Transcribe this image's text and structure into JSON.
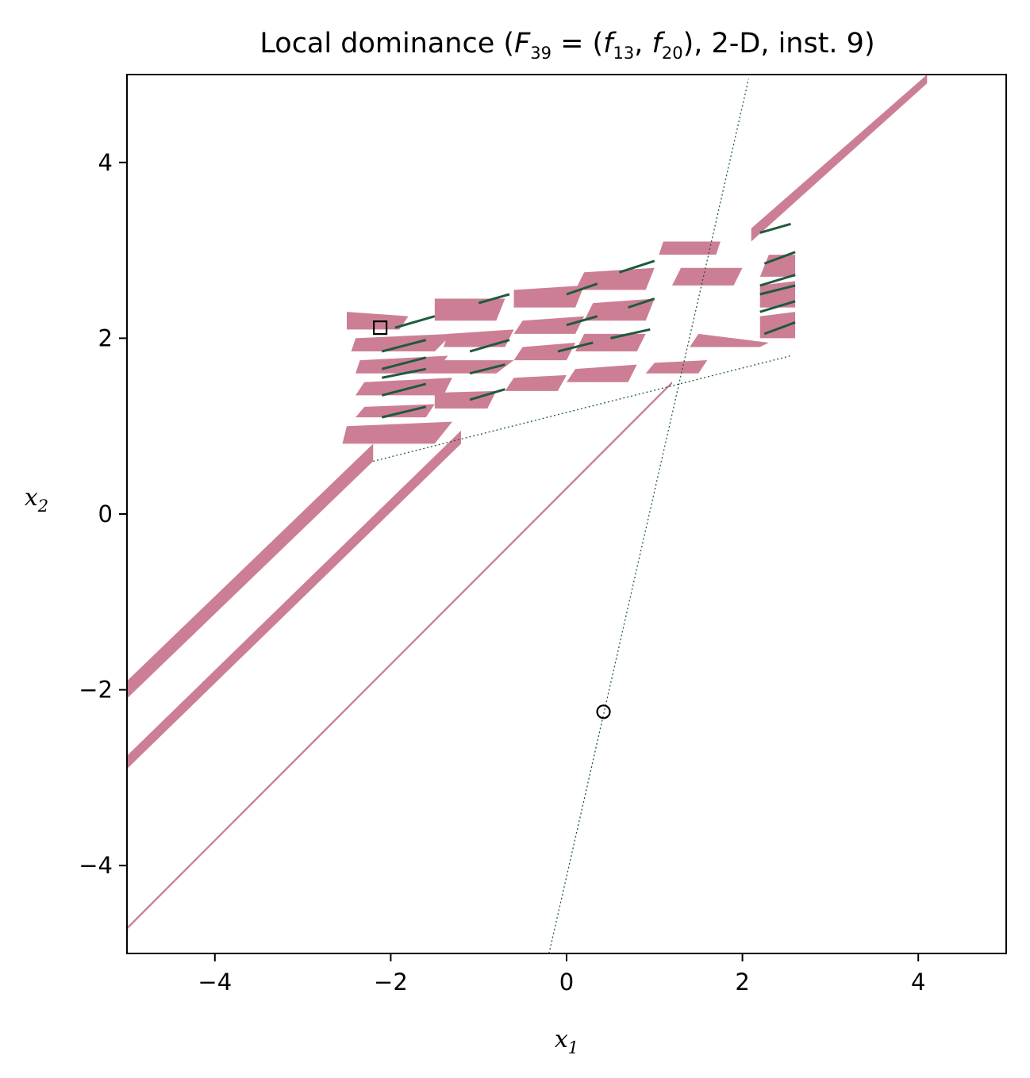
{
  "chart_data": {
    "type": "heatmap",
    "title": "Local dominance (F39 = (f13, f20), 2-D, inst. 9)",
    "title_parts": {
      "prefix": "Local dominance (",
      "F": "F",
      "F_sub": "39",
      "f1": "f",
      "f1_sub": "13",
      "f2": "f",
      "f2_sub": "20",
      "suffix": "), 2-D, inst. 9)"
    },
    "xlabel": "x",
    "xlabel_sub": "1",
    "ylabel": "x",
    "ylabel_sub": "2",
    "xlim": [
      -5,
      5
    ],
    "ylim": [
      -5,
      5
    ],
    "xticks": [
      -4,
      -2,
      0,
      2,
      4
    ],
    "yticks": [
      -4,
      -2,
      0,
      2,
      4
    ],
    "xtick_labels": [
      "−4",
      "−2",
      "0",
      "2",
      "4"
    ],
    "ytick_labels": [
      "−4",
      "−2",
      "0",
      "2",
      "4"
    ],
    "grid": false,
    "colors": {
      "dominated_region": "#cc7f94",
      "efficient_set": "#1f5a3c",
      "background": "#ffffff"
    },
    "diagonal_bands": [
      {
        "x0": -5,
        "y0_low": -2.1,
        "y0_high": -1.9,
        "x1": -2.2,
        "y1_low": 0.6,
        "y1_high": 0.8
      },
      {
        "x0": -5,
        "y0_low": -2.9,
        "y0_high": -2.75,
        "x1": -1.2,
        "y1_low": 0.8,
        "y1_high": 0.95
      },
      {
        "x0": -5,
        "y0_low": -4.73,
        "y0_high": -4.7,
        "x1": 1.2,
        "y1_low": 1.48,
        "y1_high": 1.51
      },
      {
        "x0": 2.1,
        "y0_low": 3.1,
        "y0_high": 3.25,
        "x1": 4.1,
        "y1_low": 4.9,
        "y1_high": 5.0
      }
    ],
    "patches": [
      {
        "x": [
          -2.5,
          -1.9,
          -1.8,
          -2.5
        ],
        "y": [
          2.1,
          2.1,
          2.25,
          2.3
        ]
      },
      {
        "x": [
          -2.45,
          -1.5,
          -1.3,
          -2.4
        ],
        "y": [
          1.85,
          1.85,
          2.05,
          2.0
        ]
      },
      {
        "x": [
          -2.4,
          -1.5,
          -1.35,
          -2.35
        ],
        "y": [
          1.6,
          1.6,
          1.8,
          1.75
        ]
      },
      {
        "x": [
          -2.4,
          -1.4,
          -1.3,
          -2.3
        ],
        "y": [
          1.35,
          1.35,
          1.55,
          1.5
        ]
      },
      {
        "x": [
          -2.4,
          -1.6,
          -1.5,
          -2.3
        ],
        "y": [
          1.1,
          1.1,
          1.25,
          1.22
        ]
      },
      {
        "x": [
          -2.55,
          -1.5,
          -1.3,
          -2.5
        ],
        "y": [
          0.8,
          0.8,
          1.05,
          1.0
        ]
      },
      {
        "x": [
          -1.5,
          -0.8,
          -0.7,
          -1.5
        ],
        "y": [
          2.2,
          2.2,
          2.45,
          2.45
        ]
      },
      {
        "x": [
          -1.4,
          -0.7,
          -0.6,
          -1.35
        ],
        "y": [
          1.9,
          1.9,
          2.1,
          2.05
        ]
      },
      {
        "x": [
          -1.5,
          -0.8,
          -0.6,
          -1.4
        ],
        "y": [
          1.6,
          1.6,
          1.75,
          1.75
        ]
      },
      {
        "x": [
          -1.5,
          -0.9,
          -0.8,
          -1.5
        ],
        "y": [
          1.2,
          1.2,
          1.4,
          1.38
        ]
      },
      {
        "x": [
          -0.6,
          0.1,
          0.2,
          -0.6
        ],
        "y": [
          2.35,
          2.35,
          2.6,
          2.55
        ]
      },
      {
        "x": [
          -0.6,
          0.1,
          0.2,
          -0.5
        ],
        "y": [
          2.05,
          2.05,
          2.25,
          2.2
        ]
      },
      {
        "x": [
          -0.6,
          0.0,
          0.1,
          -0.5
        ],
        "y": [
          1.75,
          1.75,
          1.95,
          1.9
        ]
      },
      {
        "x": [
          -0.7,
          -0.1,
          0.0,
          -0.6
        ],
        "y": [
          1.4,
          1.4,
          1.58,
          1.55
        ]
      },
      {
        "x": [
          0.1,
          0.9,
          1.0,
          0.2
        ],
        "y": [
          2.55,
          2.55,
          2.8,
          2.75
        ]
      },
      {
        "x": [
          0.2,
          0.9,
          1.0,
          0.3
        ],
        "y": [
          2.2,
          2.2,
          2.45,
          2.4
        ]
      },
      {
        "x": [
          0.1,
          0.8,
          0.9,
          0.2
        ],
        "y": [
          1.85,
          1.85,
          2.05,
          2.05
        ]
      },
      {
        "x": [
          0.0,
          0.7,
          0.8,
          0.1
        ],
        "y": [
          1.5,
          1.5,
          1.7,
          1.65
        ]
      },
      {
        "x": [
          1.05,
          1.7,
          1.75,
          1.1
        ],
        "y": [
          2.95,
          2.95,
          3.1,
          3.1
        ]
      },
      {
        "x": [
          1.2,
          1.9,
          2.0,
          1.3
        ],
        "y": [
          2.6,
          2.6,
          2.8,
          2.8
        ]
      },
      {
        "x": [
          1.4,
          2.2,
          2.3,
          1.5
        ],
        "y": [
          1.9,
          1.9,
          1.95,
          2.05
        ]
      },
      {
        "x": [
          0.9,
          1.5,
          1.6,
          1.0
        ],
        "y": [
          1.6,
          1.6,
          1.75,
          1.72
        ]
      },
      {
        "x": [
          2.2,
          2.6,
          2.6,
          2.3
        ],
        "y": [
          2.7,
          2.7,
          2.95,
          2.95
        ]
      },
      {
        "x": [
          2.2,
          2.6,
          2.6,
          2.2
        ],
        "y": [
          2.35,
          2.35,
          2.65,
          2.6
        ]
      },
      {
        "x": [
          2.2,
          2.6,
          2.6,
          2.2
        ],
        "y": [
          2.0,
          2.0,
          2.3,
          2.25
        ]
      }
    ],
    "efficient_segments": [
      {
        "x": [
          -1.95,
          -1.5
        ],
        "y": [
          2.12,
          2.25
        ]
      },
      {
        "x": [
          -2.1,
          -1.6
        ],
        "y": [
          1.85,
          1.98
        ]
      },
      {
        "x": [
          -2.1,
          -1.6
        ],
        "y": [
          1.65,
          1.78
        ]
      },
      {
        "x": [
          -2.1,
          -1.6
        ],
        "y": [
          1.55,
          1.65
        ]
      },
      {
        "x": [
          -2.1,
          -1.6
        ],
        "y": [
          1.35,
          1.48
        ]
      },
      {
        "x": [
          -2.1,
          -1.6
        ],
        "y": [
          1.1,
          1.22
        ]
      },
      {
        "x": [
          -1.0,
          -0.65
        ],
        "y": [
          2.4,
          2.5
        ]
      },
      {
        "x": [
          -1.1,
          -0.65
        ],
        "y": [
          1.85,
          1.98
        ]
      },
      {
        "x": [
          -1.1,
          -0.7
        ],
        "y": [
          1.6,
          1.7
        ]
      },
      {
        "x": [
          -1.1,
          -0.7
        ],
        "y": [
          1.3,
          1.42
        ]
      },
      {
        "x": [
          0.0,
          0.35
        ],
        "y": [
          2.5,
          2.62
        ]
      },
      {
        "x": [
          0.0,
          0.35
        ],
        "y": [
          2.15,
          2.25
        ]
      },
      {
        "x": [
          -0.1,
          0.3
        ],
        "y": [
          1.85,
          1.95
        ]
      },
      {
        "x": [
          0.6,
          1.0
        ],
        "y": [
          2.75,
          2.88
        ]
      },
      {
        "x": [
          0.7,
          1.0
        ],
        "y": [
          2.35,
          2.45
        ]
      },
      {
        "x": [
          0.5,
          0.95
        ],
        "y": [
          2.0,
          2.1
        ]
      },
      {
        "x": [
          2.2,
          2.55
        ],
        "y": [
          3.2,
          3.3
        ]
      },
      {
        "x": [
          2.25,
          2.6
        ],
        "y": [
          2.85,
          2.98
        ]
      },
      {
        "x": [
          2.2,
          2.6
        ],
        "y": [
          2.6,
          2.72
        ]
      },
      {
        "x": [
          2.2,
          2.6
        ],
        "y": [
          2.5,
          2.6
        ]
      },
      {
        "x": [
          2.2,
          2.6
        ],
        "y": [
          2.3,
          2.42
        ]
      },
      {
        "x": [
          2.25,
          2.6
        ],
        "y": [
          2.05,
          2.18
        ]
      }
    ],
    "dotted_lines": [
      {
        "x": [
          -0.2,
          2.07
        ],
        "y": [
          -5.0,
          4.95
        ]
      },
      {
        "x": [
          -2.2,
          2.55
        ],
        "y": [
          0.6,
          1.8
        ]
      }
    ],
    "markers": [
      {
        "shape": "square",
        "x": -2.12,
        "y": 2.12
      },
      {
        "shape": "circle",
        "x": 0.42,
        "y": -2.25
      }
    ]
  }
}
